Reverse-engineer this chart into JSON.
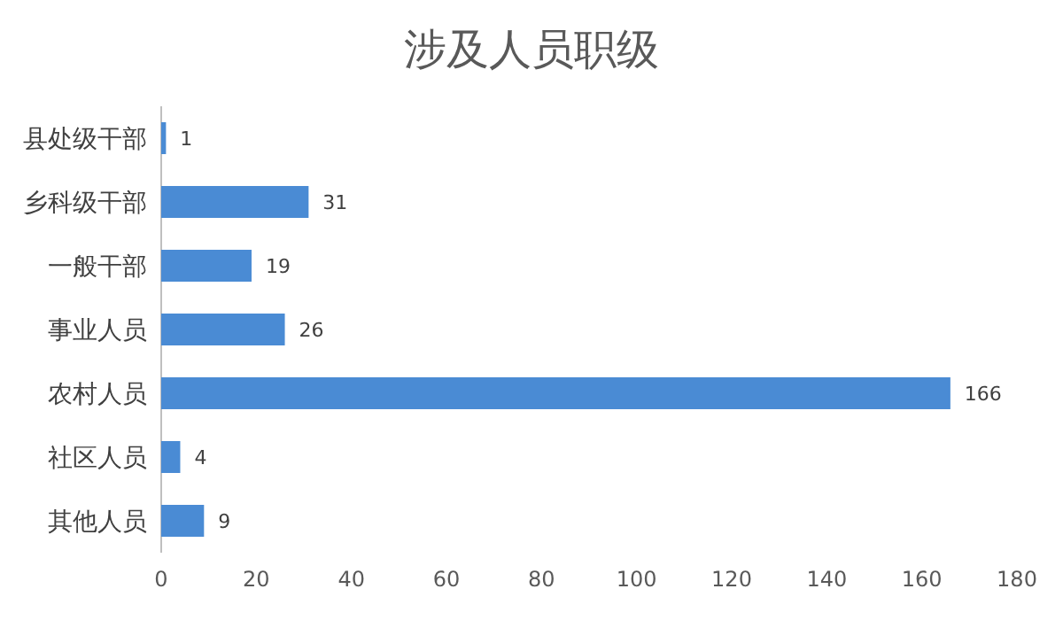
{
  "chart_data": {
    "type": "bar",
    "orientation": "horizontal",
    "title": "涉及人员职级",
    "categories": [
      "县处级干部",
      "乡科级干部",
      "一般干部",
      "事业人员",
      "农村人员",
      "社区人员",
      "其他人员"
    ],
    "values": [
      1,
      31,
      19,
      26,
      166,
      4,
      9
    ],
    "color": "#4a8bd4",
    "xlim": [
      0,
      180
    ],
    "xticks": [
      0,
      20,
      40,
      60,
      80,
      100,
      120,
      140,
      160,
      180
    ],
    "data_labels": true
  }
}
